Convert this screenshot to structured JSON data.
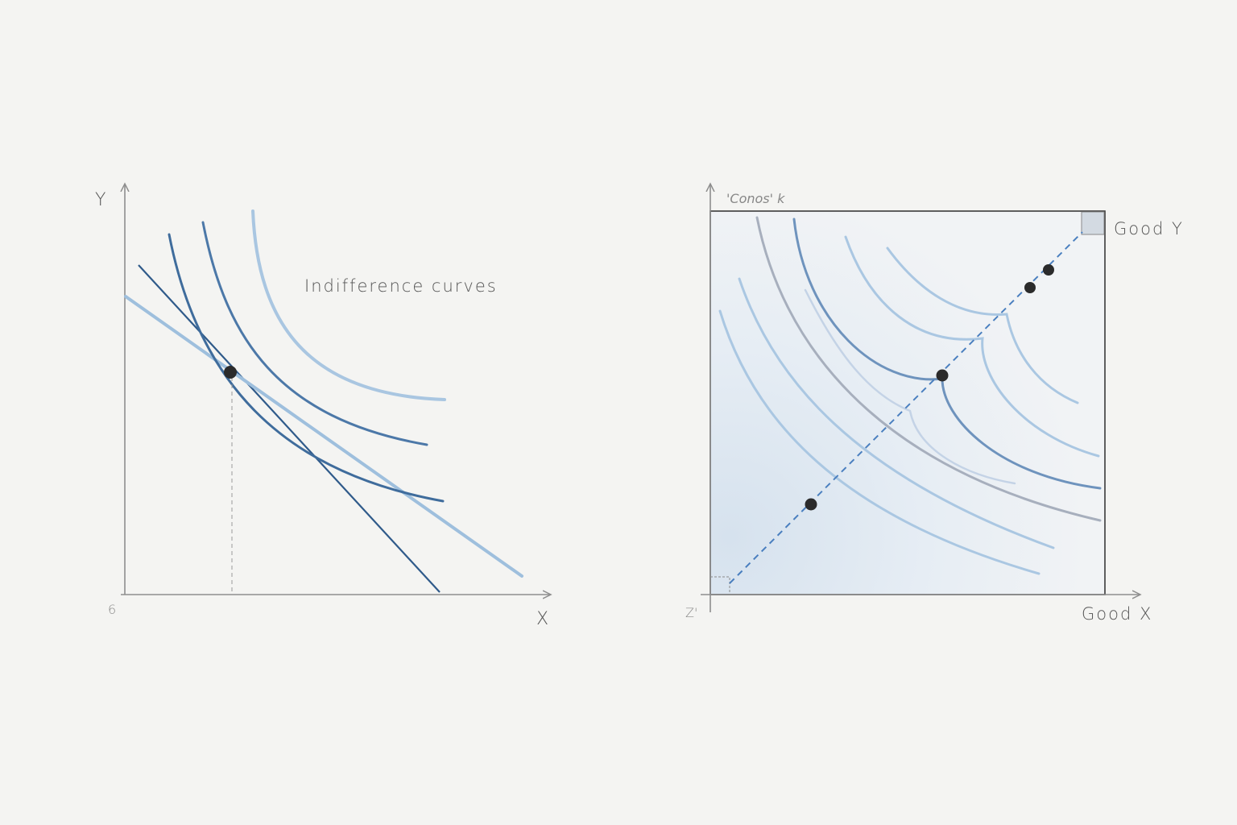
{
  "left_panel": {
    "y_label": "Y",
    "x_label": "X",
    "origin_label": "6",
    "title": "Indifference curves",
    "colors": {
      "dark": "#3f6c9c",
      "mid": "#5d86b4",
      "light": "#a9c6e1",
      "dot": "#2b2b2b"
    }
  },
  "right_panel": {
    "top_label": "'Conos' k",
    "good_y_label": "Good Y",
    "good_x_label": "Good X",
    "origin_label": "Z'",
    "colors": {
      "box": "#3a3a3a",
      "dashed": "#4a7fbf",
      "curve_light": "#aac7e2",
      "curve_mid": "#6e93bd",
      "curve_gray": "#a7afbd",
      "fill": "#e4ebf3"
    }
  }
}
